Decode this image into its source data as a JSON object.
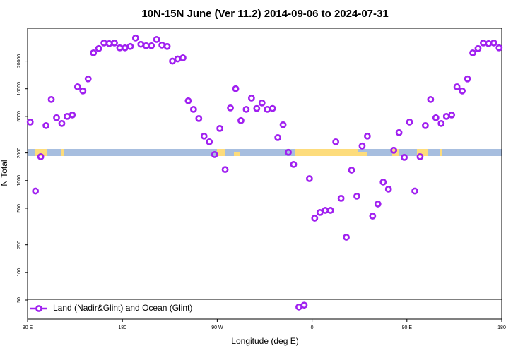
{
  "chart_data": {
    "type": "scatter",
    "title": "10N-15N June (Ver 11.2)   2014-09-06 to 2024-07-31",
    "xlabel": "Longitude (deg E)",
    "ylabel": "N Total",
    "log_y": true,
    "legend": "bottom-left",
    "x": [
      92.5,
      97.5,
      102.5,
      107.5,
      112.5,
      117.5,
      122.5,
      127.5,
      132.5,
      137.5,
      142.5,
      147.5,
      152.5,
      157.5,
      162.5,
      167.5,
      172.5,
      177.5,
      182.5,
      187.5,
      192.5,
      197.5,
      202.5,
      207.5,
      212.5,
      217.5,
      222.5,
      227.5,
      232.5,
      237.5,
      242.5,
      247.5,
      252.5,
      257.5,
      262.5,
      267.5,
      272.5,
      277.5,
      282.5,
      287.5,
      292.5,
      297.5,
      302.5,
      307.5,
      312.5,
      317.5,
      322.5,
      327.5,
      332.5,
      337.5,
      342.5,
      347.5,
      352.5,
      357.5,
      362.5,
      367.5,
      372.5,
      377.5,
      382.5,
      387.5,
      392.5,
      397.5,
      402.5,
      407.5,
      412.5,
      417.5,
      422.5,
      427.5,
      432.5,
      437.5,
      442.5,
      447.5,
      452.5,
      457.5,
      462.5,
      467.5,
      472.5,
      477.5,
      482.5,
      487.5,
      492.5,
      497.5,
      502.5,
      507.5,
      512.5,
      517.5,
      522.5,
      527.5,
      532.5,
      537.5
    ],
    "series": [
      {
        "name": "Land (Nadir&Glint) and Ocean (Glint)",
        "color": "#a020f0",
        "values": [
          4340,
          770,
          1820,
          3970,
          7650,
          4830,
          4190,
          5000,
          5180,
          10500,
          9460,
          12800,
          24600,
          27400,
          31500,
          31000,
          31500,
          27900,
          27900,
          28900,
          35700,
          30500,
          29400,
          29400,
          34400,
          29900,
          28900,
          20000,
          21100,
          21700,
          7390,
          5970,
          4740,
          3050,
          2640,
          1920,
          3700,
          1320,
          6180,
          10000,
          4500,
          5970,
          7920,
          6100,
          7000,
          5970,
          6100,
          2940,
          4050,
          2030,
          1500,
          42,
          44,
          1050,
          390,
          450,
          474,
          474,
          2640,
          641,
          242,
          1300,
          676,
          2380,
          3050,
          411,
          556,
          963,
          807,
          2140,
          3330,
          1790,
          4340,
          770,
          1820,
          3970,
          7650,
          4830,
          4190,
          5000,
          5180,
          10500,
          9460,
          12800,
          24600,
          27400,
          31500,
          31000,
          31500,
          27900
        ]
      }
    ],
    "xlim": [
      90,
      540
    ],
    "xticks": [
      {
        "value": 90,
        "label": "90 E"
      },
      180,
      {
        "value": 270,
        "label": "90 W"
      },
      {
        "value": 360,
        "label": "0"
      },
      {
        "value": 450,
        "label": "90 E"
      },
      {
        "value": 540,
        "label": "180"
      }
    ],
    "ylim": [
      31,
      45600
    ],
    "yticks": [
      50,
      100,
      200,
      500,
      1000,
      2000,
      5000,
      10000,
      20000
    ]
  }
}
